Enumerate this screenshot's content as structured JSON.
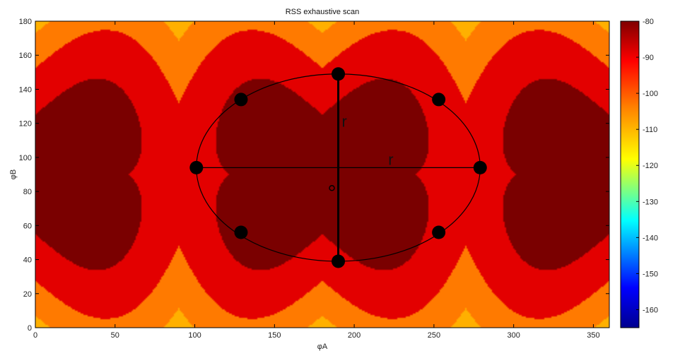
{
  "chart_data": {
    "type": "heatmap",
    "title": "RSS exhaustive scan",
    "xlabel": "φA",
    "ylabel": "φB",
    "xlim": [
      0,
      360
    ],
    "ylim": [
      0,
      180
    ],
    "x_ticks": [
      0,
      50,
      100,
      150,
      200,
      250,
      300,
      350
    ],
    "y_ticks": [
      0,
      20,
      40,
      60,
      80,
      100,
      120,
      140,
      160,
      180
    ],
    "colorbar": {
      "range": [
        -165,
        -80
      ],
      "ticks": [
        -80,
        -90,
        -100,
        -110,
        -120,
        -130,
        -140,
        -150,
        -160
      ],
      "colormap": [
        "#00008f",
        "#0000ff",
        "#00ffff",
        "#ffff00",
        "#ff8000",
        "#ff0000",
        "#800000"
      ]
    },
    "contour_levels": [
      -165,
      -150,
      -140,
      -130,
      -120,
      -110,
      -100,
      -90,
      -85,
      -80
    ],
    "fill_colors": [
      "#00157a",
      "#1f6dff",
      "#21d3ee",
      "#80ffb0",
      "#ffff30",
      "#ffb000",
      "#ff7a00",
      "#e30000",
      "#7a0000"
    ],
    "annotation_circle": {
      "center": [
        190,
        94
      ],
      "radius_x": 89,
      "radius_y": 55,
      "points": [
        [
          101,
          94
        ],
        [
          129,
          134
        ],
        [
          190,
          149
        ],
        [
          253,
          134
        ],
        [
          279,
          94
        ],
        [
          253,
          56
        ],
        [
          190,
          39
        ],
        [
          129,
          56
        ]
      ],
      "center_marker": [
        186,
        82
      ],
      "labels": [
        "r",
        "r"
      ]
    }
  }
}
